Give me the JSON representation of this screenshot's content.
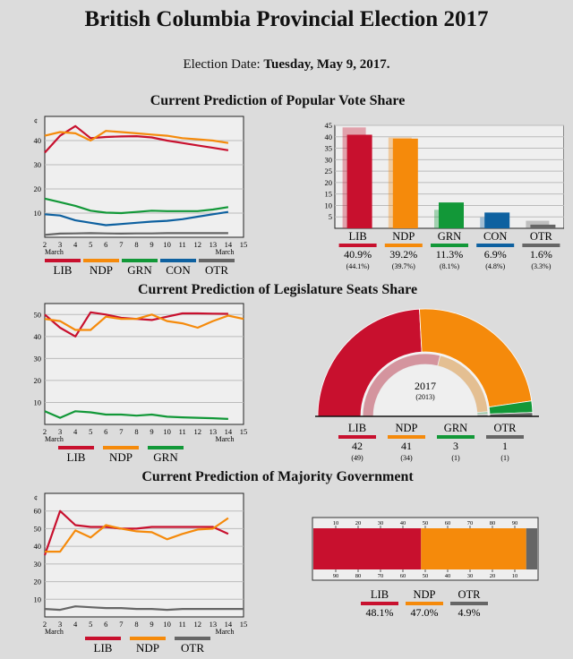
{
  "header": {
    "title": "British Columbia Provincial Election 2017",
    "date_label": "Election Date:",
    "date_value": "Tuesday, May 9, 2017."
  },
  "colors": {
    "LIB": "#c8102e",
    "NDP": "#f58a0b",
    "GRN": "#129838",
    "CON": "#0e61a0",
    "OTR": "#666666"
  },
  "sections": {
    "vote": {
      "title": "Current Prediction of Popular Vote Share"
    },
    "seats": {
      "title": "Current Prediction of Legislature Seats Share"
    },
    "majority": {
      "title": "Current Prediction of Majority Government"
    }
  },
  "chart_data": [
    {
      "id": "vote-trend",
      "type": "line",
      "x": [
        2,
        3,
        4,
        5,
        6,
        7,
        8,
        9,
        10,
        11,
        12,
        13,
        14
      ],
      "x_ticks": [
        2,
        3,
        4,
        5,
        6,
        7,
        8,
        9,
        10,
        11,
        12,
        13,
        14,
        15
      ],
      "x_sub_label": "March",
      "ylim": [
        0,
        50
      ],
      "y_ticks": [
        10,
        20,
        30,
        40
      ],
      "y_unit": "¢",
      "series": [
        {
          "name": "LIB",
          "values": [
            35,
            42,
            46,
            41,
            41.5,
            41.7,
            41.8,
            41.3,
            40,
            39,
            38,
            37,
            36
          ]
        },
        {
          "name": "NDP",
          "values": [
            42,
            43.5,
            43,
            40,
            44,
            43.5,
            43,
            42.5,
            42,
            41,
            40.5,
            40,
            39
          ]
        },
        {
          "name": "GRN",
          "values": [
            16,
            14.5,
            13,
            11,
            10.2,
            10,
            10.5,
            11,
            10.8,
            10.8,
            10.8,
            11.5,
            12.5
          ]
        },
        {
          "name": "CON",
          "values": [
            9.5,
            9,
            7,
            6,
            5,
            5.5,
            6,
            6.5,
            6.8,
            7.5,
            8.5,
            9.5,
            10.5
          ]
        },
        {
          "name": "OTR",
          "values": [
            1,
            1.5,
            1.6,
            1.7,
            1.6,
            1.5,
            1.6,
            1.6,
            1.7,
            1.7,
            1.7,
            1.7,
            1.7
          ]
        }
      ]
    },
    {
      "id": "vote-share",
      "type": "bar",
      "categories": [
        "LIB",
        "NDP",
        "GRN",
        "CON",
        "OTR"
      ],
      "values": [
        40.9,
        39.2,
        11.3,
        6.9,
        1.6
      ],
      "previous_values": [
        44.1,
        39.7,
        8.1,
        4.8,
        3.3
      ],
      "value_labels": [
        "40.9%",
        "39.2%",
        "11.3%",
        "6.9%",
        "1.6%"
      ],
      "previous_labels": [
        "(44.1%)",
        "(39.7%)",
        "(8.1%)",
        "(4.8%)",
        "(3.3%)"
      ],
      "ylim": [
        0,
        45
      ],
      "y_ticks": [
        5,
        10,
        15,
        20,
        25,
        30,
        35,
        40,
        45
      ]
    },
    {
      "id": "seats-trend",
      "type": "line",
      "x": [
        2,
        3,
        4,
        5,
        6,
        7,
        8,
        9,
        10,
        11,
        12,
        13,
        14,
        15
      ],
      "x_ticks": [
        2,
        3,
        4,
        5,
        6,
        7,
        8,
        9,
        10,
        11,
        12,
        13,
        14,
        15
      ],
      "x_sub_label": "March",
      "ylim": [
        0,
        55
      ],
      "y_ticks": [
        10,
        20,
        30,
        40,
        50
      ],
      "series": [
        {
          "name": "LIB",
          "values": [
            50,
            44,
            40,
            51,
            50,
            48.5,
            48,
            47.5,
            49,
            50.5,
            50.5,
            50.4,
            50.3,
            null
          ]
        },
        {
          "name": "NDP",
          "values": [
            48,
            47,
            43,
            43,
            49,
            48,
            48,
            50,
            47,
            46,
            44,
            47,
            49.5,
            48
          ]
        },
        {
          "name": "GRN",
          "values": [
            6,
            3,
            6,
            5.5,
            4.5,
            4.5,
            4,
            4.5,
            3.5,
            3.2,
            3,
            2.8,
            2.5,
            null
          ]
        }
      ]
    },
    {
      "id": "seats-share",
      "type": "pie",
      "subtype": "semicircle",
      "categories": [
        "LIB",
        "NDP",
        "GRN",
        "OTR"
      ],
      "values": [
        42,
        41,
        3,
        1
      ],
      "previous_values": [
        49,
        34,
        1,
        1
      ],
      "value_labels": [
        "42",
        "41",
        "3",
        "1"
      ],
      "previous_labels": [
        "(49)",
        "(34)",
        "(1)",
        "(1)"
      ],
      "center_label": "2017",
      "center_sub_label": "(2013)"
    },
    {
      "id": "majority-trend",
      "type": "line",
      "x": [
        2,
        3,
        4,
        5,
        6,
        7,
        8,
        9,
        10,
        11,
        12,
        13,
        14,
        15
      ],
      "x_ticks": [
        2,
        3,
        4,
        5,
        6,
        7,
        8,
        9,
        10,
        11,
        12,
        13,
        14,
        15
      ],
      "x_sub_label": "March",
      "ylim": [
        0,
        70
      ],
      "y_ticks": [
        10,
        20,
        30,
        40,
        50,
        60
      ],
      "y_unit": "¢",
      "series": [
        {
          "name": "LIB",
          "values": [
            35,
            60,
            52,
            51,
            51,
            50,
            50,
            51,
            51,
            51,
            51,
            51,
            47,
            null
          ]
        },
        {
          "name": "NDP",
          "values": [
            37,
            37,
            49,
            45,
            52,
            50,
            48.5,
            48,
            44,
            47,
            49.5,
            50,
            56,
            null
          ]
        },
        {
          "name": "OTR",
          "values": [
            4.5,
            4,
            6,
            5.5,
            5,
            5,
            4.5,
            4.5,
            4,
            4.5,
            4.5,
            4.5,
            4.5,
            4.5
          ]
        }
      ]
    },
    {
      "id": "majority-share",
      "type": "bar",
      "subtype": "stacked-horizontal",
      "categories": [
        "LIB",
        "NDP",
        "OTR"
      ],
      "values": [
        48.1,
        47.0,
        4.9
      ],
      "value_labels": [
        "48.1%",
        "47.0%",
        "4.9%"
      ],
      "top_ticks": [
        10,
        20,
        30,
        40,
        50,
        60,
        70,
        80,
        90
      ],
      "bottom_ticks": [
        90,
        80,
        70,
        60,
        50,
        40,
        30,
        20,
        10
      ]
    }
  ]
}
